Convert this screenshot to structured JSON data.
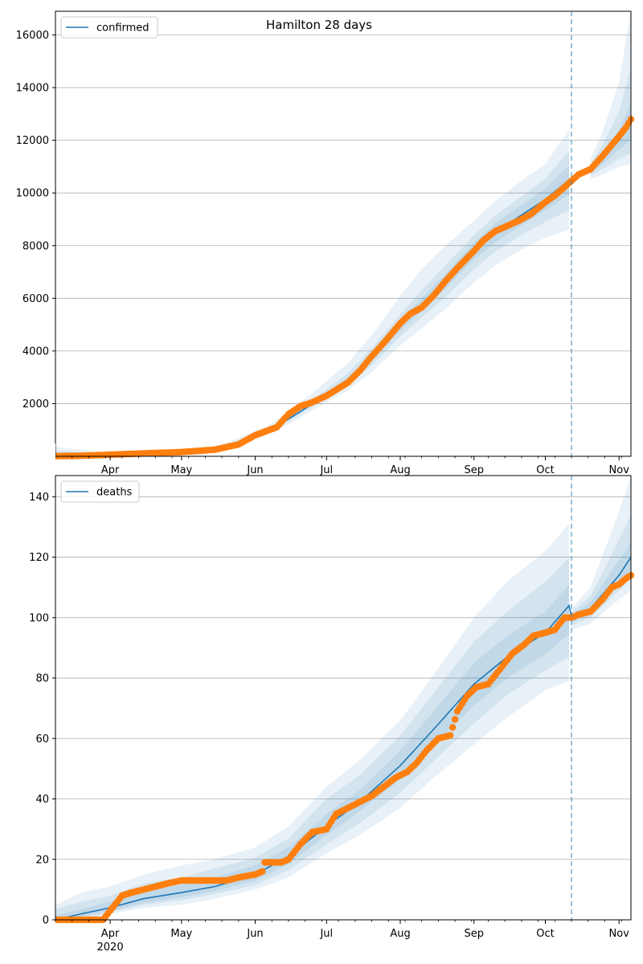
{
  "chart_data": [
    {
      "type": "line",
      "title": "Hamilton 28 days",
      "legend": {
        "labels": [
          "confirmed"
        ],
        "placement": "top-left"
      },
      "ylim": [
        0,
        16900
      ],
      "yticks": [
        0,
        2000,
        4000,
        6000,
        8000,
        10000,
        12000,
        14000,
        16000
      ],
      "grid": "y",
      "x_range": [
        "2020-03-09",
        "2020-11-06"
      ],
      "xticks": [
        {
          "date": "2020-04-01",
          "label": "Apr",
          "sublabel": ""
        },
        {
          "date": "2020-05-01",
          "label": "May",
          "sublabel": ""
        },
        {
          "date": "2020-06-01",
          "label": "Jun",
          "sublabel": ""
        },
        {
          "date": "2020-07-01",
          "label": "Jul",
          "sublabel": ""
        },
        {
          "date": "2020-08-01",
          "label": "Aug",
          "sublabel": ""
        },
        {
          "date": "2020-09-01",
          "label": "Sep",
          "sublabel": ""
        },
        {
          "date": "2020-10-01",
          "label": "Oct",
          "sublabel": ""
        },
        {
          "date": "2020-11-01",
          "label": "Nov",
          "sublabel": ""
        }
      ],
      "forecast_start": "2020-10-12",
      "model": {
        "name": "confirmed",
        "color": "#1f77b4",
        "points": [
          [
            "2020-03-09",
            0
          ],
          [
            "2020-03-31",
            60
          ],
          [
            "2020-04-15",
            110
          ],
          [
            "2020-05-01",
            160
          ],
          [
            "2020-05-15",
            260
          ],
          [
            "2020-05-25",
            550
          ],
          [
            "2020-06-05",
            900
          ],
          [
            "2020-06-12",
            1250
          ],
          [
            "2020-06-20",
            1700
          ],
          [
            "2020-07-01",
            2350
          ],
          [
            "2020-07-10",
            2900
          ],
          [
            "2020-07-20",
            3750
          ],
          [
            "2020-08-01",
            4950
          ],
          [
            "2020-08-10",
            5750
          ],
          [
            "2020-08-20",
            6650
          ],
          [
            "2020-09-01",
            7800
          ],
          [
            "2020-09-10",
            8500
          ],
          [
            "2020-09-20",
            9100
          ],
          [
            "2020-10-01",
            9750
          ],
          [
            "2020-10-11",
            10500
          ],
          [
            "2020-10-20",
            10850
          ],
          [
            "2020-10-25",
            11300
          ],
          [
            "2020-11-01",
            12000
          ],
          [
            "2020-11-06",
            12650
          ]
        ]
      },
      "bands": [
        {
          "lo": [
            0,
            40,
            90,
            130,
            210,
            470,
            780,
            1080,
            1470,
            2050,
            2500,
            3200,
            4200,
            4850,
            5600,
            6600,
            7250,
            7800,
            8300,
            8600,
            10500,
            10700,
            11000,
            11100
          ],
          "hi": [
            350,
            150,
            180,
            230,
            350,
            700,
            1100,
            1500,
            2050,
            2850,
            3550,
            4600,
            6100,
            7100,
            8000,
            8950,
            9700,
            10400,
            11100,
            12400,
            11300,
            12300,
            14200,
            17000
          ]
        },
        {
          "lo": [
            0,
            50,
            100,
            145,
            235,
            510,
            840,
            1170,
            1590,
            2200,
            2700,
            3450,
            4550,
            5270,
            6050,
            7100,
            7780,
            8350,
            8900,
            9350,
            10650,
            10900,
            11300,
            11500
          ],
          "hi": [
            200,
            110,
            150,
            190,
            300,
            620,
            990,
            1360,
            1850,
            2550,
            3150,
            4100,
            5400,
            6300,
            7250,
            8400,
            9150,
            9800,
            10550,
            11600,
            11100,
            11800,
            13100,
            14800
          ]
        },
        {
          "lo": [
            0,
            55,
            105,
            152,
            248,
            530,
            870,
            1210,
            1645,
            2280,
            2810,
            3620,
            4770,
            5530,
            6380,
            7470,
            8140,
            8720,
            9330,
            9950,
            10750,
            11100,
            11650,
            12000
          ],
          "hi": [
            100,
            80,
            130,
            175,
            280,
            580,
            940,
            1300,
            1760,
            2430,
            3000,
            3900,
            5150,
            5990,
            6920,
            8120,
            8850,
            9480,
            10170,
            11050,
            10950,
            11500,
            12400,
            13400
          ]
        }
      ],
      "observed": {
        "color": "#ff7f0e",
        "points": [
          [
            "2020-03-09",
            5
          ],
          [
            "2020-03-20",
            20
          ],
          [
            "2020-04-01",
            60
          ],
          [
            "2020-04-15",
            110
          ],
          [
            "2020-05-01",
            160
          ],
          [
            "2020-05-15",
            250
          ],
          [
            "2020-05-25",
            450
          ],
          [
            "2020-06-01",
            800
          ],
          [
            "2020-06-10",
            1100
          ],
          [
            "2020-06-12",
            1300
          ],
          [
            "2020-06-15",
            1600
          ],
          [
            "2020-06-20",
            1900
          ],
          [
            "2020-06-25",
            2050
          ],
          [
            "2020-07-01",
            2300
          ],
          [
            "2020-07-10",
            2800
          ],
          [
            "2020-07-15",
            3250
          ],
          [
            "2020-07-20",
            3800
          ],
          [
            "2020-07-25",
            4300
          ],
          [
            "2020-08-01",
            5050
          ],
          [
            "2020-08-05",
            5400
          ],
          [
            "2020-08-10",
            5650
          ],
          [
            "2020-08-15",
            6100
          ],
          [
            "2020-08-20",
            6650
          ],
          [
            "2020-08-25",
            7150
          ],
          [
            "2020-09-01",
            7800
          ],
          [
            "2020-09-05",
            8200
          ],
          [
            "2020-09-10",
            8550
          ],
          [
            "2020-09-15",
            8750
          ],
          [
            "2020-09-20",
            8950
          ],
          [
            "2020-09-25",
            9200
          ],
          [
            "2020-10-01",
            9650
          ],
          [
            "2020-10-05",
            9900
          ],
          [
            "2020-10-10",
            10300
          ],
          [
            "2020-10-15",
            10700
          ],
          [
            "2020-10-20",
            10900
          ],
          [
            "2020-10-25",
            11400
          ],
          [
            "2020-11-01",
            12150
          ],
          [
            "2020-11-04",
            12500
          ],
          [
            "2020-11-06",
            12800
          ]
        ]
      }
    },
    {
      "type": "line",
      "title": "",
      "legend": {
        "labels": [
          "deaths"
        ],
        "placement": "top-left"
      },
      "ylim": [
        0,
        147
      ],
      "yticks": [
        0,
        20,
        40,
        60,
        80,
        100,
        120,
        140
      ],
      "grid": "y",
      "x_range": [
        "2020-03-09",
        "2020-11-06"
      ],
      "xticks": [
        {
          "date": "2020-04-01",
          "label": "Apr",
          "sublabel": "2020"
        },
        {
          "date": "2020-05-01",
          "label": "May",
          "sublabel": ""
        },
        {
          "date": "2020-06-01",
          "label": "Jun",
          "sublabel": ""
        },
        {
          "date": "2020-07-01",
          "label": "Jul",
          "sublabel": ""
        },
        {
          "date": "2020-08-01",
          "label": "Aug",
          "sublabel": ""
        },
        {
          "date": "2020-09-01",
          "label": "Sep",
          "sublabel": ""
        },
        {
          "date": "2020-10-01",
          "label": "Oct",
          "sublabel": ""
        },
        {
          "date": "2020-11-01",
          "label": "Nov",
          "sublabel": ""
        }
      ],
      "forecast_start": "2020-10-12",
      "model": {
        "name": "deaths",
        "color": "#1f77b4",
        "points": [
          [
            "2020-03-09",
            0
          ],
          [
            "2020-03-20",
            2
          ],
          [
            "2020-04-01",
            4
          ],
          [
            "2020-04-15",
            7
          ],
          [
            "2020-05-01",
            9
          ],
          [
            "2020-05-15",
            11
          ],
          [
            "2020-06-01",
            15
          ],
          [
            "2020-06-15",
            21
          ],
          [
            "2020-07-01",
            31
          ],
          [
            "2020-07-15",
            39
          ],
          [
            "2020-08-01",
            51
          ],
          [
            "2020-08-15",
            63
          ],
          [
            "2020-09-01",
            78
          ],
          [
            "2020-09-15",
            87
          ],
          [
            "2020-10-01",
            95
          ],
          [
            "2020-10-11",
            104
          ],
          [
            "2020-10-12",
            100
          ],
          [
            "2020-10-20",
            103
          ],
          [
            "2020-11-01",
            114
          ],
          [
            "2020-11-06",
            120
          ]
        ]
      },
      "bands": [
        {
          "lo": [
            0,
            0,
            2,
            4,
            5,
            7,
            10,
            14,
            22,
            28,
            37,
            47,
            58,
            67,
            76,
            79,
            96,
            98,
            106,
            109
          ],
          "hi": [
            5,
            9,
            11,
            15,
            18,
            20,
            24,
            31,
            44,
            53,
            66,
            81,
            100,
            112,
            122,
            131,
            103,
            110,
            135,
            147
          ]
        },
        {
          "lo": [
            0,
            0,
            2.5,
            5,
            6.5,
            8.5,
            11.5,
            16.5,
            25,
            32,
            42,
            52.5,
            65,
            74.5,
            82.5,
            87,
            97.5,
            100,
            109,
            113
          ],
          "hi": [
            3.5,
            6,
            8,
            12,
            14,
            17,
            20.5,
            27,
            40,
            48,
            61,
            75,
            92,
            102,
            112,
            120,
            102,
            107,
            126,
            134
          ]
        },
        {
          "lo": [
            0,
            1,
            3,
            5.5,
            7.5,
            9.5,
            13,
            18.5,
            28,
            36,
            46.5,
            57.5,
            71,
            80,
            88,
            94.5,
            98.5,
            101.5,
            111,
            116
          ],
          "hi": [
            1.5,
            3.5,
            6,
            9.5,
            11.5,
            14,
            18,
            24,
            35,
            43,
            56,
            69,
            85,
            94,
            102,
            111,
            101,
            105,
            119,
            125
          ]
        }
      ],
      "observed": {
        "color": "#ff7f0e",
        "points": [
          [
            "2020-03-09",
            0
          ],
          [
            "2020-03-29",
            0
          ],
          [
            "2020-03-30",
            1
          ],
          [
            "2020-04-01",
            3
          ],
          [
            "2020-04-03",
            5
          ],
          [
            "2020-04-06",
            8
          ],
          [
            "2020-04-10",
            9
          ],
          [
            "2020-04-15",
            10
          ],
          [
            "2020-04-20",
            11
          ],
          [
            "2020-04-25",
            12
          ],
          [
            "2020-05-01",
            13
          ],
          [
            "2020-05-20",
            13
          ],
          [
            "2020-05-25",
            14
          ],
          [
            "2020-06-01",
            15
          ],
          [
            "2020-06-04",
            16
          ],
          [
            "2020-06-05",
            19
          ],
          [
            "2020-06-12",
            19
          ],
          [
            "2020-06-15",
            20
          ],
          [
            "2020-06-20",
            25
          ],
          [
            "2020-06-25",
            29
          ],
          [
            "2020-07-01",
            30
          ],
          [
            "2020-07-05",
            35
          ],
          [
            "2020-07-10",
            37
          ],
          [
            "2020-07-15",
            39
          ],
          [
            "2020-07-20",
            41
          ],
          [
            "2020-07-25",
            44
          ],
          [
            "2020-07-30",
            47
          ],
          [
            "2020-08-04",
            49
          ],
          [
            "2020-08-08",
            52
          ],
          [
            "2020-08-12",
            56
          ],
          [
            "2020-08-17",
            60
          ],
          [
            "2020-08-22",
            61
          ],
          [
            "2020-08-25",
            69
          ],
          [
            "2020-08-29",
            74
          ],
          [
            "2020-09-02",
            77
          ],
          [
            "2020-09-07",
            78
          ],
          [
            "2020-09-12",
            83
          ],
          [
            "2020-09-17",
            88
          ],
          [
            "2020-09-22",
            91
          ],
          [
            "2020-09-26",
            94
          ],
          [
            "2020-10-01",
            95
          ],
          [
            "2020-10-05",
            96
          ],
          [
            "2020-10-09",
            100
          ],
          [
            "2020-10-12",
            100
          ],
          [
            "2020-10-15",
            101
          ],
          [
            "2020-10-20",
            102
          ],
          [
            "2020-10-25",
            106
          ],
          [
            "2020-10-29",
            110
          ],
          [
            "2020-11-01",
            111
          ],
          [
            "2020-11-04",
            113
          ],
          [
            "2020-11-06",
            114
          ]
        ]
      }
    }
  ]
}
